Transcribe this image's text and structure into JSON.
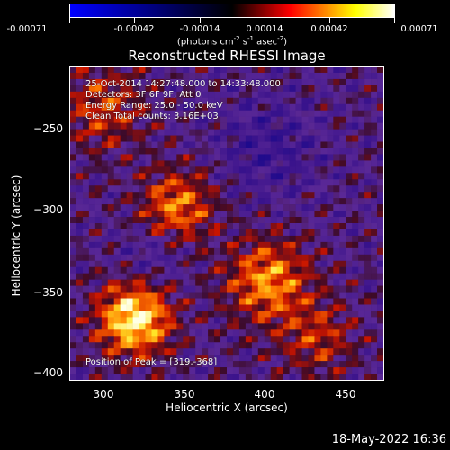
{
  "colorbar": {
    "tick_labels": [
      "-0.00071",
      "-0.00042",
      "-0.00014",
      "0.00014",
      "0.00042",
      "0.00071"
    ],
    "units_prefix": "(photons cm",
    "units_sup1": "-2",
    "units_mid1": " s",
    "units_sup2": "-1",
    "units_mid2": " asec",
    "units_sup3": "-2",
    "units_suffix": ")",
    "colors": [
      "#0000ff",
      "#000000",
      "#ff0000",
      "#ffff00",
      "#ffffff"
    ]
  },
  "info_lines": {
    "time": "25-Oct-2014 14:27:48.000 to 14:33:48.000",
    "detectors": "Detectors: 3F 6F 9F, Att 0",
    "energy": "Energy Range: 25.0 - 50.0 keV",
    "clean": "Clean     Total counts: 3.16E+03",
    "peak": "Position of Peak = [319,-368]"
  },
  "chart_data": {
    "type": "heatmap",
    "title": "Reconstructed RHESSI Image",
    "xlabel": "Heliocentric X (arcsec)",
    "ylabel": "Heliocentric Y (arcsec)",
    "xlim": [
      280,
      470
    ],
    "ylim": [
      -405,
      -215
    ],
    "x_ticks": [
      300,
      350,
      400,
      450
    ],
    "y_ticks": [
      -250,
      -300,
      -350,
      -400
    ],
    "x_tick_labels": [
      "300",
      "350",
      "400",
      "450"
    ],
    "y_tick_labels": [
      "−250",
      "−300",
      "−350",
      "−400"
    ],
    "value_range": [
      -0.00071,
      0.00071
    ],
    "peak_position": [
      319,
      -368
    ],
    "grid": false
  },
  "timestamp": "18-May-2022 16:36"
}
